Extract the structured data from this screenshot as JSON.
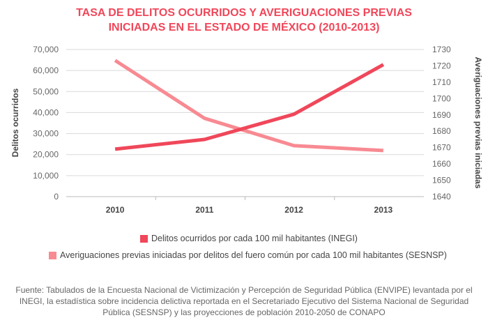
{
  "chart_data": {
    "type": "line",
    "title_lines": [
      "TASA DE DELITOS OCURRIDOS Y AVERIGUACIONES PREVIAS",
      "INICIADAS EN EL ESTADO DE MÉXICO (2010-2013)"
    ],
    "categories": [
      "2010",
      "2011",
      "2012",
      "2013"
    ],
    "ylabel": "Delitos ocurridos",
    "y2label": "Averiguaciones previas iniciadas",
    "ylim": [
      0,
      70000
    ],
    "y2lim": [
      1640,
      1730
    ],
    "yticks": [
      "0",
      "10,000",
      "20,000",
      "30,000",
      "40,000",
      "50,000",
      "60,000",
      "70,000"
    ],
    "y2ticks": [
      "1640",
      "1650",
      "1660",
      "1670",
      "1680",
      "1690",
      "1700",
      "1710",
      "1720",
      "1730"
    ],
    "grid": true,
    "legend_position": "bottom",
    "series": [
      {
        "name": "Delitos ocurridos por cada 100 mil habitantes (INEGI)",
        "axis": "left",
        "color": "#f0475a",
        "values": [
          22600,
          27200,
          39200,
          62800
        ]
      },
      {
        "name": "Averiguaciones previas iniciadas por delitos del fuero común por cada 100 mil habitantes (SESNSP)",
        "axis": "right",
        "color": "#f88a92",
        "values": [
          1723.3,
          1687.9,
          1671.2,
          1668.2
        ]
      }
    ]
  },
  "source": "Fuente: Tabulados de la Encuesta Nacional de Victimización y Percepción de Seguridad Pública (ENVIPE) levantada por el INEGI, la estadística sobre incidencia delictiva reportada en el Secretariado Ejecutivo del Sistema Nacional de Seguridad Pública (SESNSP) y las proyecciones de población 2010-2050 de CONAPO"
}
